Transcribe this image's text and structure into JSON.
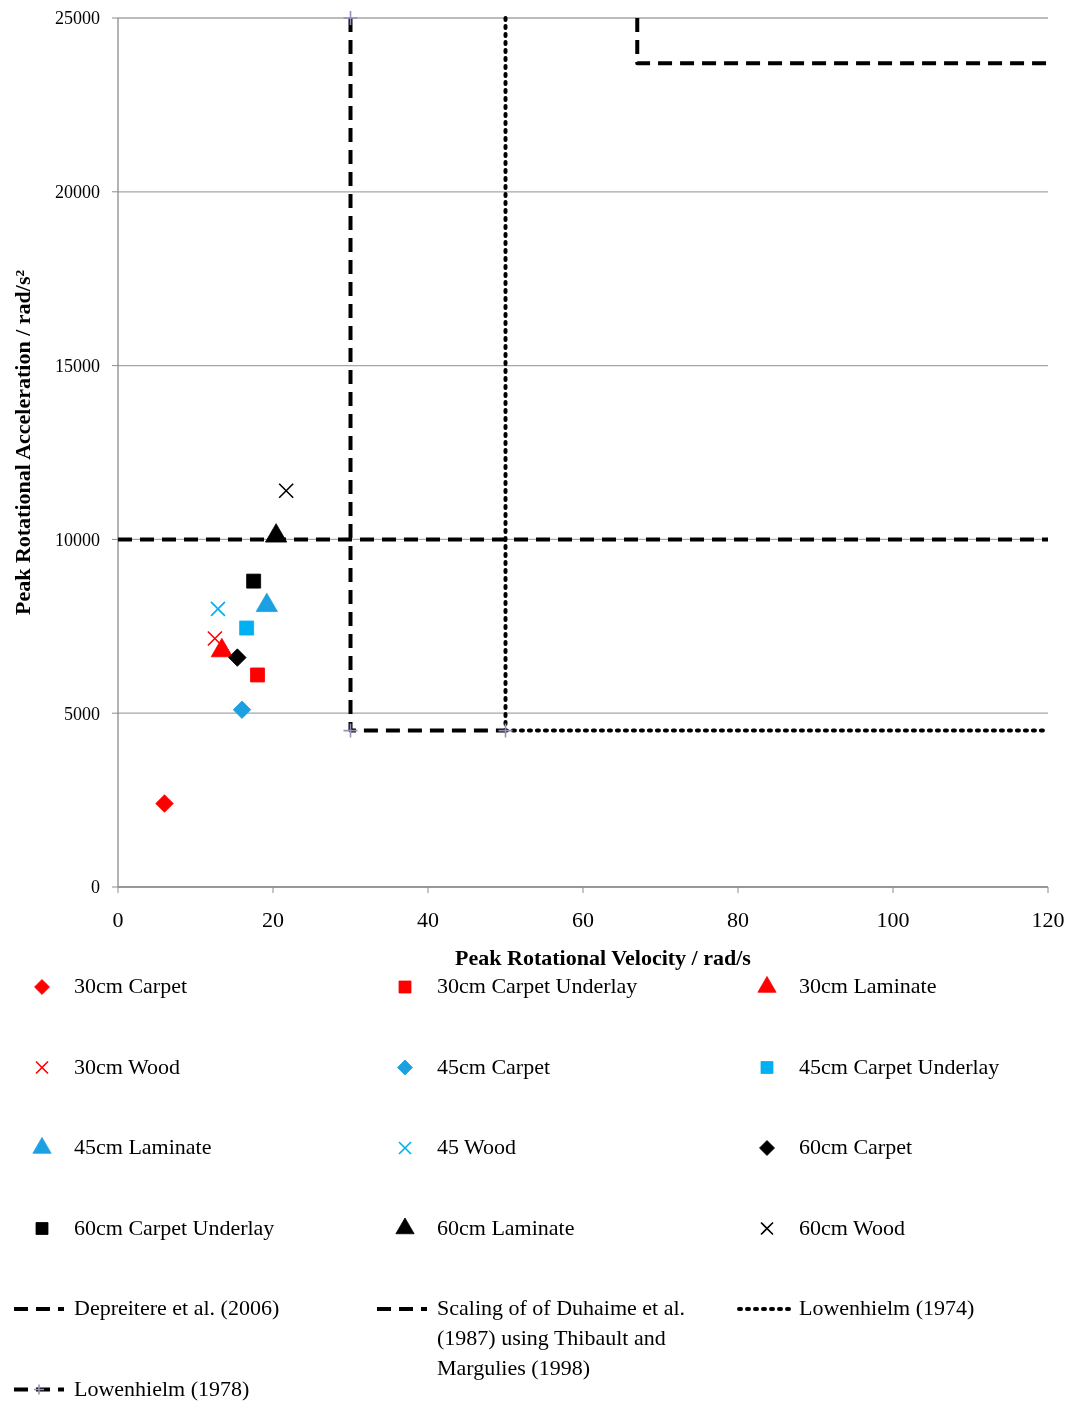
{
  "chart_data": {
    "type": "scatter",
    "xlabel": "Peak Rotational Velocity / rad/s",
    "ylabel": "Peak Rotational Acceleration / rad/s²",
    "xlim": [
      0,
      120
    ],
    "xticks": [
      0,
      20,
      40,
      60,
      80,
      100,
      120
    ],
    "ylim": [
      0,
      25000
    ],
    "yticks": [
      0,
      5000,
      10000,
      15000,
      20000,
      25000
    ],
    "grid": "y",
    "legend": "bottom",
    "series": [
      {
        "name": "30cm Carpet",
        "marker": "diamond",
        "color": "#ff0000",
        "x": [
          6
        ],
        "values": [
          2400
        ]
      },
      {
        "name": "30cm Carpet Underlay",
        "marker": "square",
        "color": "#ff0000",
        "x": [
          18
        ],
        "values": [
          6100
        ]
      },
      {
        "name": "30cm Laminate",
        "marker": "triangle",
        "color": "#ff0000",
        "x": [
          13.4
        ],
        "values": [
          6800
        ]
      },
      {
        "name": "30cm Wood",
        "marker": "cross",
        "color": "#ff0000",
        "x": [
          12.5
        ],
        "values": [
          7150
        ]
      },
      {
        "name": "45cm Carpet",
        "marker": "diamond",
        "color": "#1ba1e2",
        "x": [
          16
        ],
        "values": [
          5100
        ]
      },
      {
        "name": "45cm Carpet Underlay",
        "marker": "square",
        "color": "#00b0f0",
        "x": [
          16.6
        ],
        "values": [
          7450
        ]
      },
      {
        "name": "45cm Laminate",
        "marker": "triangle",
        "color": "#1ba1e2",
        "x": [
          19.2
        ],
        "values": [
          8100
        ]
      },
      {
        "name": "45 Wood",
        "marker": "cross",
        "color": "#00b0f0",
        "x": [
          12.9
        ],
        "values": [
          8000
        ]
      },
      {
        "name": "60cm Carpet",
        "marker": "diamond",
        "color": "#000000",
        "x": [
          15.4
        ],
        "values": [
          6600
        ]
      },
      {
        "name": "60cm Carpet Underlay",
        "marker": "square",
        "color": "#000000",
        "x": [
          17.5
        ],
        "values": [
          8800
        ]
      },
      {
        "name": "60cm Laminate",
        "marker": "triangle",
        "color": "#000000",
        "x": [
          20.4
        ],
        "values": [
          10100
        ]
      },
      {
        "name": "60cm Wood",
        "marker": "cross",
        "color": "#000000",
        "x": [
          21.7
        ],
        "values": [
          11400
        ]
      },
      {
        "name": "Depreitere et al. (2006)",
        "type": "line",
        "line_style": "dashed",
        "marker": "none",
        "color": "#000000",
        "x": [
          0,
          120
        ],
        "values": [
          10000,
          10000
        ]
      },
      {
        "name": "Scaling of of Duhaime et al. (1987) using Thibault and Margulies (1998)",
        "type": "line",
        "line_style": "dashed",
        "marker": "none",
        "color": "#000000",
        "x": [
          67,
          67,
          120
        ],
        "values": [
          25000,
          23700,
          23700
        ]
      },
      {
        "name": "Lowenhielm (1974)",
        "type": "line",
        "line_style": "dotted",
        "marker": "none",
        "color": "#000000",
        "x": [
          50,
          50,
          120
        ],
        "values": [
          25000,
          4500,
          4500
        ]
      },
      {
        "name": "Lowenhielm (1978)",
        "type": "line",
        "line_style": "dashed",
        "marker": "cross",
        "color": "#000000",
        "x": [
          30,
          30,
          50
        ],
        "values": [
          25000,
          4500,
          4500
        ]
      }
    ]
  }
}
